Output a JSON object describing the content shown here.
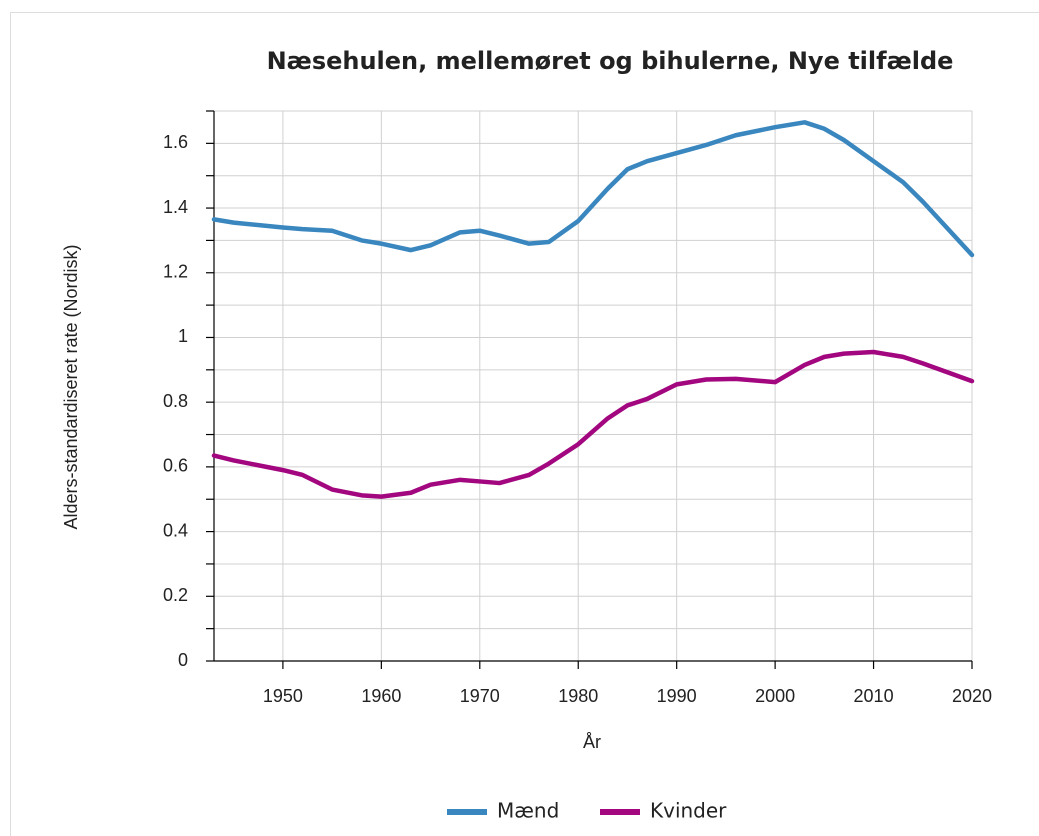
{
  "chart_data": {
    "type": "line",
    "title": "Næsehulen, mellemøret og bihulerne, Nye tilfælde",
    "xlabel": "År",
    "ylabel": "Alders-standardiseret rate (Nordisk)",
    "x": [
      1943,
      1945,
      1950,
      1952,
      1955,
      1958,
      1960,
      1963,
      1965,
      1968,
      1970,
      1972,
      1975,
      1977,
      1980,
      1983,
      1985,
      1987,
      1990,
      1993,
      1996,
      2000,
      2003,
      2005,
      2007,
      2010,
      2013,
      2015,
      2020
    ],
    "series": [
      {
        "name": "Mænd",
        "color": "#3a87c0",
        "values": [
          1.365,
          1.355,
          1.34,
          1.335,
          1.33,
          1.3,
          1.29,
          1.27,
          1.285,
          1.325,
          1.33,
          1.315,
          1.29,
          1.295,
          1.36,
          1.46,
          1.52,
          1.545,
          1.57,
          1.595,
          1.625,
          1.65,
          1.665,
          1.645,
          1.61,
          1.545,
          1.48,
          1.42,
          1.255
        ]
      },
      {
        "name": "Kvinder",
        "color": "#a3077f",
        "values": [
          0.635,
          0.62,
          0.59,
          0.575,
          0.53,
          0.512,
          0.508,
          0.52,
          0.545,
          0.56,
          0.555,
          0.55,
          0.575,
          0.61,
          0.67,
          0.75,
          0.79,
          0.81,
          0.855,
          0.87,
          0.872,
          0.862,
          0.915,
          0.94,
          0.95,
          0.955,
          0.94,
          0.92,
          0.865
        ]
      }
    ],
    "xlim": [
      1943,
      2020
    ],
    "xticks": [
      1950,
      1960,
      1970,
      1980,
      1990,
      2000,
      2010,
      2020
    ],
    "ylim": [
      0,
      1.7
    ],
    "yticks": [
      0,
      0.2,
      0.4,
      0.6,
      0.8,
      1,
      1.2,
      1.4,
      1.6
    ],
    "yminorticks": [
      0.1,
      0.3,
      0.5,
      0.7,
      0.9,
      1.1,
      1.3,
      1.5,
      1.7
    ],
    "grid": true,
    "legend": "bottom"
  }
}
